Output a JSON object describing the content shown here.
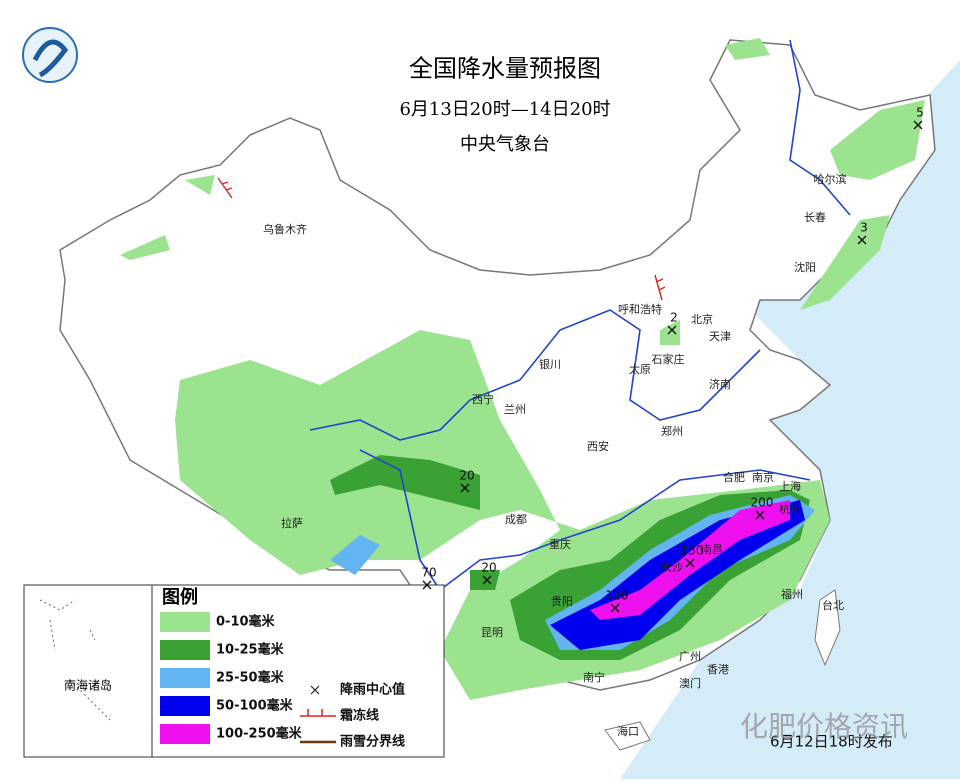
{
  "header": {
    "title": "全国降水量预报图",
    "subtitle": "6月13日20时—14日20时",
    "issuer": "中央气象台"
  },
  "legend": {
    "title": "图例",
    "items": [
      {
        "label": "0-10毫米",
        "color": "#9be38f"
      },
      {
        "label": "10-25毫米",
        "color": "#3aa135"
      },
      {
        "label": "25-50毫米",
        "color": "#62b5f0"
      },
      {
        "label": "50-100毫米",
        "color": "#0000ee"
      },
      {
        "label": "100-250毫米",
        "color": "#ee10ee"
      }
    ],
    "symbols": [
      "降雨中心值",
      "霜冻线",
      "雨雪分界线"
    ]
  },
  "inset_label": "南海诸岛",
  "cities": [
    "乌鲁木齐",
    "哈尔滨",
    "长春",
    "沈阳",
    "呼和浩特",
    "北京",
    "天津",
    "石家庄",
    "太原",
    "济南",
    "银川",
    "西宁",
    "兰州",
    "郑州",
    "西安",
    "合肥",
    "南京",
    "上海",
    "杭州",
    "成都",
    "重庆",
    "拉萨",
    "长沙",
    "南昌",
    "贵阳",
    "昆明",
    "福州",
    "台北",
    "南宁",
    "广州",
    "香港",
    "澳门",
    "海口"
  ],
  "rain_centers": [
    5,
    3,
    2,
    20,
    20,
    70,
    120,
    150,
    200
  ],
  "footer": "6月12日18时发布",
  "watermark": "化肥价格资讯"
}
